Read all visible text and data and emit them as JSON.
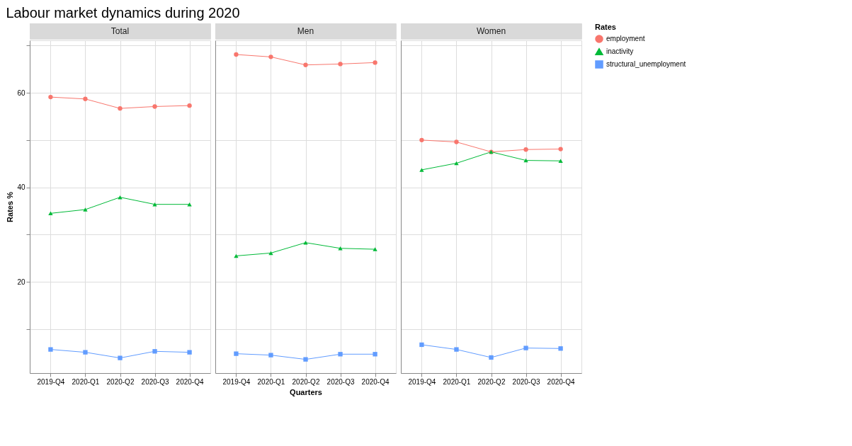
{
  "chart_data": [
    {
      "type": "line",
      "title": "Labour market dynamics during 2020",
      "subtitle": "Total",
      "legend_title": "Rates",
      "legend": "right",
      "ylabel": "Rates %",
      "categories": [
        "2019-Q4",
        "2020-Q1",
        "2020-Q2",
        "2020-Q3",
        "2020-Q4"
      ],
      "ylim": [
        0.7,
        71.1
      ],
      "yticks": [
        {
          "value": 10,
          "label": null
        },
        20,
        {
          "value": 30,
          "label": null
        },
        40,
        {
          "value": 50,
          "label": null
        },
        60,
        {
          "value": 70,
          "label": null
        }
      ],
      "grid": true,
      "line_style": "solid",
      "series": [
        {
          "name": "employment",
          "color": "#f8766d",
          "marker": "circle",
          "values": [
            59.1,
            58.7,
            56.7,
            57.1,
            57.3
          ]
        },
        {
          "name": "inactivity",
          "color": "#00ba38",
          "marker": "triangle",
          "values": [
            34.5,
            35.3,
            37.9,
            36.4,
            36.4
          ]
        },
        {
          "name": "structural_unemployment",
          "color": "#619cff",
          "marker": "square",
          "values": [
            5.7,
            5.1,
            3.9,
            5.3,
            5.1
          ]
        }
      ]
    },
    {
      "type": "line",
      "subtitle": "Men",
      "xlabel": "Quarters",
      "categories": [
        "2019-Q4",
        "2020-Q1",
        "2020-Q2",
        "2020-Q3",
        "2020-Q4"
      ],
      "ylim": [
        0.7,
        71.1
      ],
      "tick_labels": "x",
      "grid": true,
      "line_style": "solid",
      "series": [
        {
          "name": "employment",
          "color": "#f8766d",
          "marker": "circle",
          "values": [
            68.1,
            67.6,
            65.9,
            66.1,
            66.4
          ]
        },
        {
          "name": "inactivity",
          "color": "#00ba38",
          "marker": "triangle",
          "values": [
            25.5,
            26.1,
            28.3,
            27.1,
            26.9
          ]
        },
        {
          "name": "structural_unemployment",
          "color": "#619cff",
          "marker": "square",
          "values": [
            4.8,
            4.5,
            3.6,
            4.7,
            4.7
          ]
        }
      ]
    },
    {
      "type": "line",
      "subtitle": "Women",
      "categories": [
        "2019-Q4",
        "2020-Q1",
        "2020-Q2",
        "2020-Q3",
        "2020-Q4"
      ],
      "ylim": [
        0.7,
        71.1
      ],
      "tick_labels": "x",
      "grid": true,
      "line_style": "solid",
      "series": [
        {
          "name": "employment",
          "color": "#f8766d",
          "marker": "circle",
          "values": [
            50.0,
            49.6,
            47.5,
            48.0,
            48.1
          ]
        },
        {
          "name": "inactivity",
          "color": "#00ba38",
          "marker": "triangle",
          "values": [
            43.7,
            45.1,
            47.5,
            45.7,
            45.6
          ]
        },
        {
          "name": "structural_unemployment",
          "color": "#619cff",
          "marker": "square",
          "values": [
            6.7,
            5.7,
            4.0,
            6.0,
            5.9
          ]
        }
      ]
    }
  ]
}
